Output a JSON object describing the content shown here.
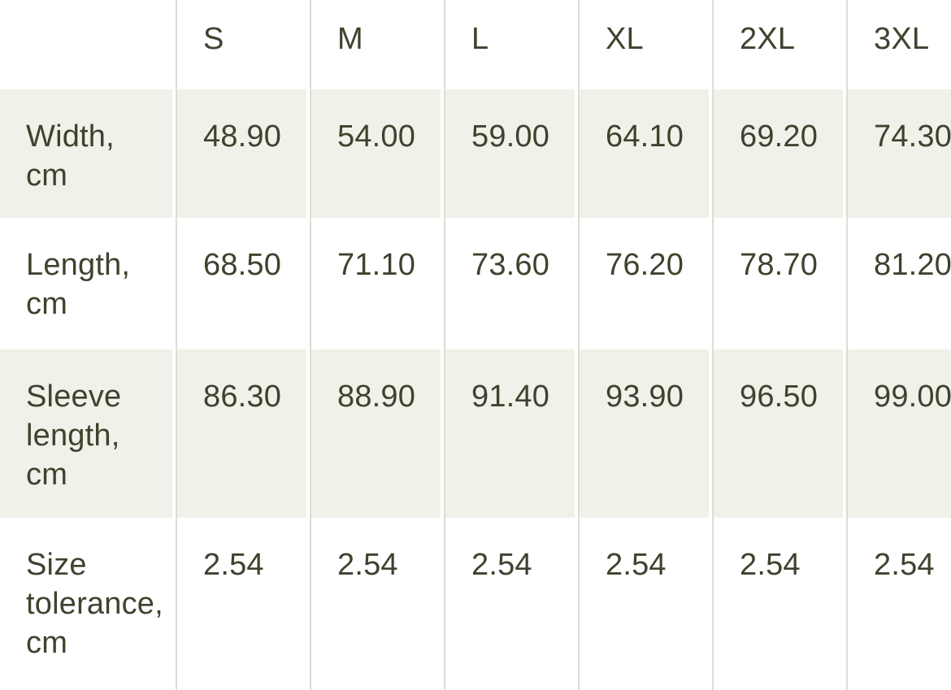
{
  "table": {
    "columns": [
      "S",
      "M",
      "L",
      "XL",
      "2XL",
      "3XL"
    ],
    "rows": [
      {
        "label": "Width, cm",
        "lines": [
          "Width,",
          "cm"
        ],
        "striped": true,
        "values": [
          "48.90",
          "54.00",
          "59.00",
          "64.10",
          "69.20",
          "74.30"
        ]
      },
      {
        "label": "Length, cm",
        "lines": [
          "Length,",
          "cm"
        ],
        "striped": false,
        "values": [
          "68.50",
          "71.10",
          "73.60",
          "76.20",
          "78.70",
          "81.20"
        ]
      },
      {
        "label": "Sleeve length, cm",
        "lines": [
          "Sleeve",
          "length,",
          "cm"
        ],
        "striped": true,
        "values": [
          "86.30",
          "88.90",
          "91.40",
          "93.90",
          "96.50",
          "99.00"
        ]
      },
      {
        "label": "Size tolerance, cm",
        "lines": [
          "Size",
          "tolerance,",
          "cm"
        ],
        "striped": false,
        "values": [
          "2.54",
          "2.54",
          "2.54",
          "2.54",
          "2.54",
          "2.54"
        ]
      }
    ],
    "colors": {
      "background": "#ffffff",
      "stripe": "#f1f0e9",
      "divider": "#deddd4",
      "text": "#3f422d"
    }
  }
}
